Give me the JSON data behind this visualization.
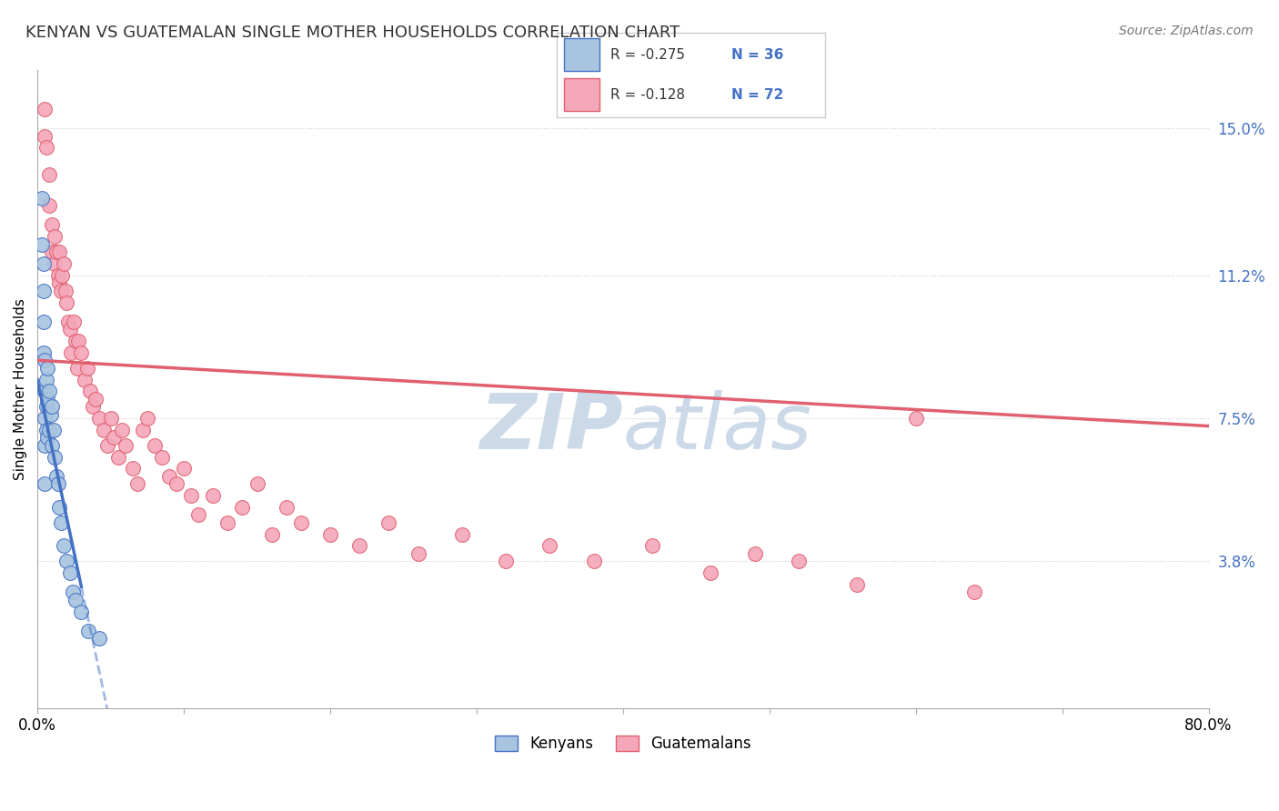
{
  "title": "KENYAN VS GUATEMALAN SINGLE MOTHER HOUSEHOLDS CORRELATION CHART",
  "source": "Source: ZipAtlas.com",
  "ylabel": "Single Mother Households",
  "xlabel": "",
  "xlim": [
    0.0,
    0.8
  ],
  "ylim": [
    0.0,
    0.165
  ],
  "yticks": [
    0.038,
    0.075,
    0.112,
    0.15
  ],
  "ytick_labels": [
    "3.8%",
    "7.5%",
    "11.2%",
    "15.0%"
  ],
  "xticks": [
    0.0,
    0.1,
    0.2,
    0.3,
    0.4,
    0.5,
    0.6,
    0.7,
    0.8
  ],
  "xtick_labels": [
    "0.0%",
    "",
    "",
    "",
    "",
    "",
    "",
    "",
    "80.0%"
  ],
  "legend_r_kenyan": "R = -0.275",
  "legend_n_kenyan": "N = 36",
  "legend_r_guatemalan": "R = -0.128",
  "legend_n_guatemalan": "N = 72",
  "kenyan_color": "#a8c4e0",
  "guatemalan_color": "#f4a7b9",
  "kenyan_line_color": "#4472c4",
  "guatemalan_line_color": "#e06070",
  "watermark_color": "#ccd9e8",
  "background_color": "#ffffff",
  "kenyan_x": [
    0.003,
    0.003,
    0.004,
    0.004,
    0.004,
    0.004,
    0.005,
    0.005,
    0.005,
    0.005,
    0.005,
    0.006,
    0.006,
    0.006,
    0.007,
    0.007,
    0.007,
    0.008,
    0.008,
    0.009,
    0.01,
    0.01,
    0.011,
    0.012,
    0.013,
    0.014,
    0.015,
    0.016,
    0.018,
    0.02,
    0.022,
    0.024,
    0.026,
    0.03,
    0.035,
    0.042
  ],
  "kenyan_y": [
    0.132,
    0.12,
    0.115,
    0.108,
    0.1,
    0.092,
    0.09,
    0.082,
    0.075,
    0.068,
    0.058,
    0.085,
    0.078,
    0.072,
    0.088,
    0.08,
    0.07,
    0.082,
    0.072,
    0.076,
    0.078,
    0.068,
    0.072,
    0.065,
    0.06,
    0.058,
    0.052,
    0.048,
    0.042,
    0.038,
    0.035,
    0.03,
    0.028,
    0.025,
    0.02,
    0.018
  ],
  "guatemalan_x": [
    0.005,
    0.005,
    0.006,
    0.008,
    0.008,
    0.01,
    0.01,
    0.012,
    0.012,
    0.013,
    0.014,
    0.015,
    0.015,
    0.016,
    0.017,
    0.018,
    0.019,
    0.02,
    0.021,
    0.022,
    0.023,
    0.025,
    0.026,
    0.027,
    0.028,
    0.03,
    0.032,
    0.034,
    0.036,
    0.038,
    0.04,
    0.042,
    0.045,
    0.048,
    0.05,
    0.052,
    0.055,
    0.058,
    0.06,
    0.065,
    0.068,
    0.072,
    0.075,
    0.08,
    0.085,
    0.09,
    0.095,
    0.1,
    0.105,
    0.11,
    0.12,
    0.13,
    0.14,
    0.15,
    0.16,
    0.17,
    0.18,
    0.2,
    0.22,
    0.24,
    0.26,
    0.29,
    0.32,
    0.35,
    0.38,
    0.42,
    0.46,
    0.49,
    0.52,
    0.56,
    0.6,
    0.64
  ],
  "guatemalan_y": [
    0.155,
    0.148,
    0.145,
    0.138,
    0.13,
    0.125,
    0.118,
    0.122,
    0.115,
    0.118,
    0.112,
    0.11,
    0.118,
    0.108,
    0.112,
    0.115,
    0.108,
    0.105,
    0.1,
    0.098,
    0.092,
    0.1,
    0.095,
    0.088,
    0.095,
    0.092,
    0.085,
    0.088,
    0.082,
    0.078,
    0.08,
    0.075,
    0.072,
    0.068,
    0.075,
    0.07,
    0.065,
    0.072,
    0.068,
    0.062,
    0.058,
    0.072,
    0.075,
    0.068,
    0.065,
    0.06,
    0.058,
    0.062,
    0.055,
    0.05,
    0.055,
    0.048,
    0.052,
    0.058,
    0.045,
    0.052,
    0.048,
    0.045,
    0.042,
    0.048,
    0.04,
    0.045,
    0.038,
    0.042,
    0.038,
    0.042,
    0.035,
    0.04,
    0.038,
    0.032,
    0.075,
    0.03
  ]
}
